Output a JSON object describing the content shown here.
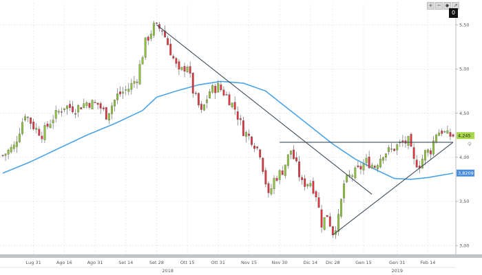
{
  "toolbar": {
    "plus": "+",
    "minus": "−",
    "tag": "◆",
    "expand": "↗",
    "counter": "0"
  },
  "side_icon": "⟳",
  "chart_data": {
    "type": "candlestick",
    "title": "",
    "xlabel": "",
    "ylabel": "",
    "ylim": [
      2.9,
      5.75
    ],
    "y_ticks": [
      {
        "value": 5.5,
        "label": "5,50"
      },
      {
        "value": 5.0,
        "label": "5,00"
      },
      {
        "value": 4.5,
        "label": "4,50"
      },
      {
        "value": 4.0,
        "label": "4,00"
      },
      {
        "value": 3.5,
        "label": "3,50"
      },
      {
        "value": 3.0,
        "label": "3,00"
      }
    ],
    "x_ticks": [
      {
        "index": 11,
        "label": "Lug 31"
      },
      {
        "index": 22,
        "label": "Ago 16"
      },
      {
        "index": 33,
        "label": "Ago 31"
      },
      {
        "index": 44,
        "label": "Set 14"
      },
      {
        "index": 55,
        "label": "Set 28"
      },
      {
        "index": 66,
        "label": "Ott 15"
      },
      {
        "index": 77,
        "label": "Ott 31"
      },
      {
        "index": 88,
        "label": "Nov 15"
      },
      {
        "index": 99,
        "label": "Nov 30"
      },
      {
        "index": 110,
        "label": "Dic 14"
      },
      {
        "index": 118,
        "label": "Dic 28"
      },
      {
        "index": 129,
        "label": "Gen 15"
      },
      {
        "index": 141,
        "label": "Gen 31"
      },
      {
        "index": 152,
        "label": "Feb 14"
      }
    ],
    "years": [
      {
        "index": 59,
        "label": "2018"
      },
      {
        "index": 141,
        "label": "2019"
      }
    ],
    "price_points": [
      {
        "x": 0,
        "close": 4.02
      },
      {
        "x": 4,
        "close": 4.12
      },
      {
        "x": 8,
        "close": 4.5
      },
      {
        "x": 11,
        "close": 4.35
      },
      {
        "x": 14,
        "close": 4.26
      },
      {
        "x": 18,
        "close": 4.45
      },
      {
        "x": 22,
        "close": 4.58
      },
      {
        "x": 26,
        "close": 4.55
      },
      {
        "x": 30,
        "close": 4.62
      },
      {
        "x": 34,
        "close": 4.6
      },
      {
        "x": 37,
        "close": 4.48
      },
      {
        "x": 41,
        "close": 4.7
      },
      {
        "x": 45,
        "close": 4.78
      },
      {
        "x": 48,
        "close": 4.9
      },
      {
        "x": 51,
        "close": 5.3
      },
      {
        "x": 54,
        "close": 5.48
      },
      {
        "x": 57,
        "close": 5.45
      },
      {
        "x": 60,
        "close": 5.2
      },
      {
        "x": 63,
        "close": 4.95
      },
      {
        "x": 66,
        "close": 5.05
      },
      {
        "x": 68,
        "close": 4.75
      },
      {
        "x": 71,
        "close": 4.5
      },
      {
        "x": 74,
        "close": 4.75
      },
      {
        "x": 77,
        "close": 4.8
      },
      {
        "x": 80,
        "close": 4.7
      },
      {
        "x": 83,
        "close": 4.55
      },
      {
        "x": 86,
        "close": 4.3
      },
      {
        "x": 89,
        "close": 4.2
      },
      {
        "x": 92,
        "close": 4.05
      },
      {
        "x": 95,
        "close": 3.55
      },
      {
        "x": 97,
        "close": 3.75
      },
      {
        "x": 100,
        "close": 3.85
      },
      {
        "x": 103,
        "close": 4.08
      },
      {
        "x": 105,
        "close": 3.9
      },
      {
        "x": 107,
        "close": 3.7
      },
      {
        "x": 110,
        "close": 3.72
      },
      {
        "x": 112,
        "close": 3.58
      },
      {
        "x": 114,
        "close": 3.25
      },
      {
        "x": 116,
        "close": 3.35
      },
      {
        "x": 118,
        "close": 3.15
      },
      {
        "x": 120,
        "close": 3.3
      },
      {
        "x": 122,
        "close": 3.7
      },
      {
        "x": 124,
        "close": 3.78
      },
      {
        "x": 127,
        "close": 3.85
      },
      {
        "x": 130,
        "close": 3.95
      },
      {
        "x": 133,
        "close": 3.9
      },
      {
        "x": 136,
        "close": 4.05
      },
      {
        "x": 139,
        "close": 4.08
      },
      {
        "x": 142,
        "close": 4.15
      },
      {
        "x": 145,
        "close": 4.18
      },
      {
        "x": 147,
        "close": 3.95
      },
      {
        "x": 149,
        "close": 3.92
      },
      {
        "x": 151,
        "close": 4.05
      },
      {
        "x": 153,
        "close": 4.08
      },
      {
        "x": 155,
        "close": 4.28
      },
      {
        "x": 157,
        "close": 4.3
      },
      {
        "x": 159,
        "close": 4.245
      }
    ],
    "moving_average": [
      {
        "x": 0,
        "value": 3.82
      },
      {
        "x": 10,
        "value": 3.95
      },
      {
        "x": 20,
        "value": 4.1
      },
      {
        "x": 30,
        "value": 4.25
      },
      {
        "x": 40,
        "value": 4.38
      },
      {
        "x": 50,
        "value": 4.53
      },
      {
        "x": 55,
        "value": 4.68
      },
      {
        "x": 62,
        "value": 4.75
      },
      {
        "x": 70,
        "value": 4.82
      },
      {
        "x": 78,
        "value": 4.86
      },
      {
        "x": 86,
        "value": 4.84
      },
      {
        "x": 94,
        "value": 4.75
      },
      {
        "x": 102,
        "value": 4.55
      },
      {
        "x": 110,
        "value": 4.35
      },
      {
        "x": 118,
        "value": 4.15
      },
      {
        "x": 126,
        "value": 3.98
      },
      {
        "x": 134,
        "value": 3.85
      },
      {
        "x": 140,
        "value": 3.76
      },
      {
        "x": 146,
        "value": 3.75
      },
      {
        "x": 152,
        "value": 3.77
      },
      {
        "x": 161,
        "value": 3.82
      }
    ],
    "trendlines": [
      {
        "from": {
          "x": 55,
          "y": 5.5
        },
        "to": {
          "x": 132,
          "y": 3.58
        }
      },
      {
        "from": {
          "x": 118,
          "y": 3.12
        },
        "to": {
          "x": 161,
          "y": 4.17
        }
      },
      {
        "from": {
          "x": 99,
          "y": 4.17
        },
        "to": {
          "x": 161,
          "y": 4.17
        }
      }
    ],
    "last_price": {
      "value": 4.245,
      "label": "4,245",
      "color": "#a8d84a"
    },
    "ma_last": {
      "value": 3.8209,
      "label": "3,8209",
      "color": "#4a8de0"
    },
    "colors": {
      "up": "#8fc43a",
      "down": "#e0343f",
      "ma": "#4aa3e8",
      "trend": "#3a4a5a"
    },
    "grid": true,
    "x_count": 162
  }
}
